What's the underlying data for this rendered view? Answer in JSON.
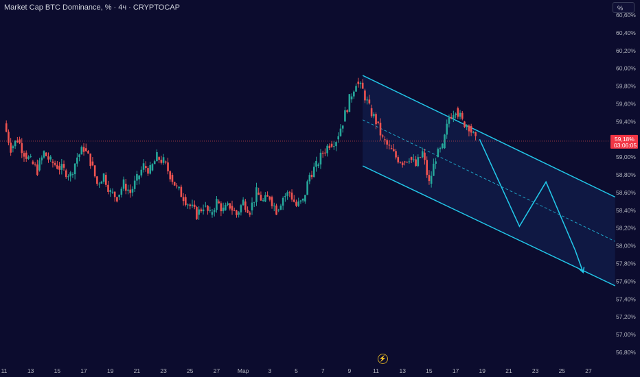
{
  "header": {
    "title": "Market Cap BTC Dominance, % · 4ч · CRYPTOCAP",
    "scale_button": "%"
  },
  "price_axis": {
    "labels": [
      "60,60%",
      "60,40%",
      "60,20%",
      "60,00%",
      "59,80%",
      "59,60%",
      "59,40%",
      "59,20%",
      "59,00%",
      "58,80%",
      "58,60%",
      "58,40%",
      "58,20%",
      "58,00%",
      "57,80%",
      "57,60%",
      "57,40%",
      "57,20%",
      "57,00%",
      "56,80%"
    ],
    "last_price": "59,18%",
    "countdown": "03:06:05",
    "last_price_color": "#f23645"
  },
  "time_axis": {
    "labels": [
      "11",
      "13",
      "15",
      "17",
      "19",
      "21",
      "23",
      "25",
      "27",
      "Мар",
      "3",
      "5",
      "7",
      "9",
      "11",
      "13",
      "15",
      "17",
      "19",
      "21",
      "23",
      "25",
      "27"
    ]
  },
  "colors": {
    "up": "#26a69a",
    "down": "#ef5350",
    "drawing": "#22c4e6",
    "background": "#0c0c2e"
  },
  "chart_data": {
    "type": "candlestick",
    "title": "Market Cap BTC Dominance, %",
    "timeframe": "4ч",
    "ylim": [
      56.7,
      60.75
    ],
    "x_range_days": [
      0,
      47
    ],
    "last_price": 59.18,
    "series_close": [
      [
        0.0,
        59.38
      ],
      [
        0.5,
        59.1
      ],
      [
        1.0,
        59.2
      ],
      [
        1.5,
        59.05
      ],
      [
        2.0,
        58.95
      ],
      [
        2.5,
        58.85
      ],
      [
        3.0,
        59.05
      ],
      [
        3.5,
        58.95
      ],
      [
        4.0,
        58.9
      ],
      [
        4.5,
        58.85
      ],
      [
        5.0,
        58.8
      ],
      [
        5.5,
        59.0
      ],
      [
        6.0,
        59.1
      ],
      [
        6.5,
        58.95
      ],
      [
        7.0,
        58.7
      ],
      [
        7.5,
        58.8
      ],
      [
        8.0,
        58.6
      ],
      [
        8.5,
        58.55
      ],
      [
        9.0,
        58.7
      ],
      [
        9.5,
        58.6
      ],
      [
        10.0,
        58.75
      ],
      [
        10.5,
        58.9
      ],
      [
        11.0,
        58.85
      ],
      [
        11.5,
        59.0
      ],
      [
        12.0,
        58.95
      ],
      [
        12.5,
        58.8
      ],
      [
        13.0,
        58.65
      ],
      [
        13.5,
        58.55
      ],
      [
        14.0,
        58.45
      ],
      [
        14.5,
        58.35
      ],
      [
        15.0,
        58.45
      ],
      [
        15.5,
        58.35
      ],
      [
        16.0,
        58.5
      ],
      [
        16.5,
        58.4
      ],
      [
        17.0,
        58.45
      ],
      [
        17.5,
        58.35
      ],
      [
        18.0,
        58.5
      ],
      [
        18.5,
        58.4
      ],
      [
        19.0,
        58.6
      ],
      [
        19.5,
        58.5
      ],
      [
        20.0,
        58.55
      ],
      [
        20.5,
        58.4
      ],
      [
        21.0,
        58.55
      ],
      [
        21.5,
        58.6
      ],
      [
        22.0,
        58.45
      ],
      [
        22.5,
        58.5
      ],
      [
        23.0,
        58.8
      ],
      [
        23.5,
        58.9
      ],
      [
        24.0,
        59.05
      ],
      [
        24.5,
        59.15
      ],
      [
        25.0,
        59.2
      ],
      [
        25.5,
        59.4
      ],
      [
        26.0,
        59.65
      ],
      [
        26.5,
        59.85
      ],
      [
        27.0,
        59.75
      ],
      [
        27.5,
        59.55
      ],
      [
        28.0,
        59.4
      ],
      [
        28.5,
        59.2
      ],
      [
        29.0,
        59.1
      ],
      [
        29.5,
        59.0
      ],
      [
        30.0,
        58.95
      ],
      [
        30.5,
        59.0
      ],
      [
        31.0,
        58.9
      ],
      [
        31.5,
        59.05
      ],
      [
        32.0,
        58.7
      ],
      [
        32.5,
        59.0
      ],
      [
        33.0,
        59.1
      ],
      [
        33.5,
        59.45
      ],
      [
        34.0,
        59.55
      ],
      [
        34.5,
        59.4
      ],
      [
        35.0,
        59.35
      ],
      [
        35.5,
        59.18
      ]
    ],
    "trend_channel": {
      "upper": [
        [
          27.0,
          59.92
        ],
        [
          46.0,
          58.55
        ]
      ],
      "middle": [
        [
          27.0,
          59.42
        ],
        [
          46.0,
          58.05
        ]
      ],
      "lower": [
        [
          27.0,
          58.9
        ],
        [
          46.0,
          57.55
        ]
      ]
    },
    "projection_path": [
      [
        35.8,
        59.2
      ],
      [
        38.8,
        58.22
      ],
      [
        40.8,
        58.72
      ],
      [
        43.0,
        57.95
      ],
      [
        43.6,
        57.7
      ]
    ]
  }
}
